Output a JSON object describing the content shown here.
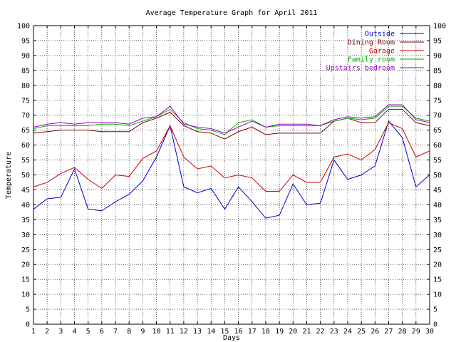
{
  "chart_data": {
    "type": "line",
    "title": "Average Temperature Graph for April 2011",
    "xlabel": "Days",
    "ylabel": "Temperature",
    "xlim": [
      1,
      30
    ],
    "ylim": [
      0,
      100
    ],
    "x_ticks": [
      1,
      2,
      3,
      4,
      5,
      6,
      7,
      8,
      9,
      10,
      11,
      12,
      13,
      14,
      15,
      16,
      17,
      18,
      19,
      20,
      21,
      22,
      23,
      24,
      25,
      26,
      27,
      28,
      29,
      30
    ],
    "y_ticks": [
      0,
      5,
      10,
      15,
      20,
      25,
      30,
      35,
      40,
      45,
      50,
      55,
      60,
      65,
      70,
      75,
      80,
      85,
      90,
      95,
      100
    ],
    "grid": true,
    "legend_position": "top-right",
    "x": [
      1,
      2,
      3,
      4,
      5,
      6,
      7,
      8,
      9,
      10,
      11,
      12,
      13,
      14,
      15,
      16,
      17,
      18,
      19,
      20,
      21,
      22,
      23,
      24,
      25,
      26,
      27,
      28,
      29,
      30
    ],
    "series": [
      {
        "name": "Outside",
        "color": "#0000cc",
        "values": [
          38.5,
          42,
          42.5,
          52,
          38.5,
          38,
          41,
          43.5,
          48,
          56,
          66.5,
          46,
          44,
          45.5,
          38.5,
          46,
          41,
          35.5,
          36.5,
          47,
          40,
          40.5,
          55,
          48.5,
          50,
          53,
          68,
          62.5,
          46,
          50
        ]
      },
      {
        "name": "Dining Room",
        "color": "#800000",
        "values": [
          64,
          64.5,
          65,
          65,
          65,
          64.5,
          64.5,
          64.5,
          67.5,
          69,
          71,
          66.5,
          64.5,
          64,
          62,
          64.5,
          66,
          63.5,
          64,
          64,
          64,
          64,
          68,
          69,
          67.5,
          67.5,
          72,
          72,
          67.5,
          66.5
        ]
      },
      {
        "name": "Garage",
        "color": "#cc0000",
        "values": [
          46,
          47.5,
          50.5,
          52.5,
          48.5,
          45.5,
          50,
          49.5,
          55.5,
          58,
          66.5,
          56,
          52,
          53,
          49,
          50,
          49,
          44.5,
          44.5,
          50,
          47.5,
          47.5,
          56,
          57,
          55,
          58.5,
          67.5,
          65.5,
          56,
          58
        ]
      },
      {
        "name": "Family room",
        "color": "#00aa00",
        "values": [
          65.5,
          66.5,
          66.5,
          66.5,
          66.5,
          67,
          67,
          66.5,
          68,
          69.5,
          72,
          67.5,
          65.5,
          65,
          63.5,
          67.5,
          68.5,
          66,
          66.5,
          66.5,
          66.5,
          66.5,
          68,
          69,
          68.5,
          69,
          73,
          73,
          69,
          68
        ]
      },
      {
        "name": "Upstairs bedroom",
        "color": "#9900cc",
        "values": [
          66,
          67,
          67.5,
          67,
          67.5,
          67.5,
          67.5,
          67,
          69,
          69.5,
          73,
          67,
          66,
          65.5,
          64,
          66,
          68,
          66,
          67,
          67,
          67,
          66.5,
          68.5,
          69.5,
          69,
          69.5,
          73.5,
          73.5,
          68.5,
          67.5
        ]
      }
    ]
  }
}
